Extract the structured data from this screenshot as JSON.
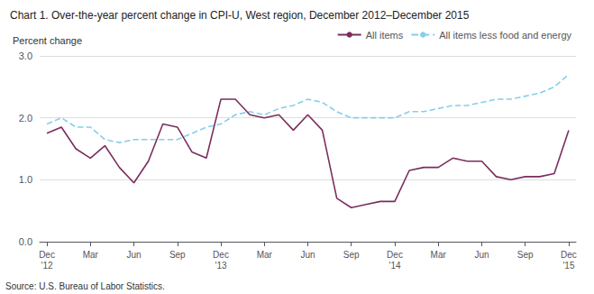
{
  "chart_data": {
    "type": "line",
    "title": "Chart 1. Over-the-year percent change in CPI-U, West region, December 2012–December 2015",
    "ylabel": "Percent change",
    "annotations": [
      "Source: U.S. Bureau of Labor Statistics."
    ],
    "categories": [
      "Dec\n'12",
      null,
      null,
      "Mar",
      null,
      null,
      "Jun",
      null,
      null,
      "Sep",
      null,
      null,
      "Dec\n'13",
      null,
      null,
      "Mar",
      null,
      null,
      "Jun",
      null,
      null,
      "Sep",
      null,
      null,
      "Dec\n'14",
      null,
      null,
      "Mar",
      null,
      null,
      "Jun",
      null,
      null,
      "Sep",
      null,
      null,
      "Dec\n'15"
    ],
    "series": [
      {
        "name": "All items",
        "color": "#7B2D5E",
        "line_style": "solid",
        "values": [
          1.75,
          1.85,
          1.5,
          1.35,
          1.55,
          1.2,
          0.95,
          1.3,
          1.9,
          1.85,
          1.45,
          1.35,
          2.3,
          2.3,
          2.05,
          2.0,
          2.05,
          1.8,
          2.05,
          1.8,
          0.7,
          0.55,
          0.6,
          0.65,
          0.65,
          1.15,
          1.2,
          1.2,
          1.35,
          1.3,
          1.3,
          1.05,
          1.0,
          1.05,
          1.05,
          1.1,
          1.8
        ]
      },
      {
        "name": "All items less food and energy",
        "color": "#87CEEB",
        "line_style": "dashed",
        "values": [
          1.9,
          2.0,
          1.85,
          1.85,
          1.65,
          1.6,
          1.65,
          1.65,
          1.65,
          1.65,
          1.75,
          1.85,
          1.9,
          2.05,
          2.1,
          2.05,
          2.15,
          2.2,
          2.3,
          2.25,
          2.1,
          2.0,
          2.0,
          2.0,
          2.0,
          2.1,
          2.1,
          2.15,
          2.2,
          2.2,
          2.25,
          2.3,
          2.3,
          2.35,
          2.4,
          2.5,
          2.7
        ]
      }
    ],
    "ylim": [
      0.0,
      3.0
    ],
    "yticks": [
      {
        "value": 0.0,
        "label": "0.0"
      },
      {
        "value": 1.0,
        "label": "1.0"
      },
      {
        "value": 2.0,
        "label": "2.0"
      },
      {
        "value": 3.0,
        "label": "3.0"
      }
    ],
    "grid": true,
    "legend": "top"
  }
}
